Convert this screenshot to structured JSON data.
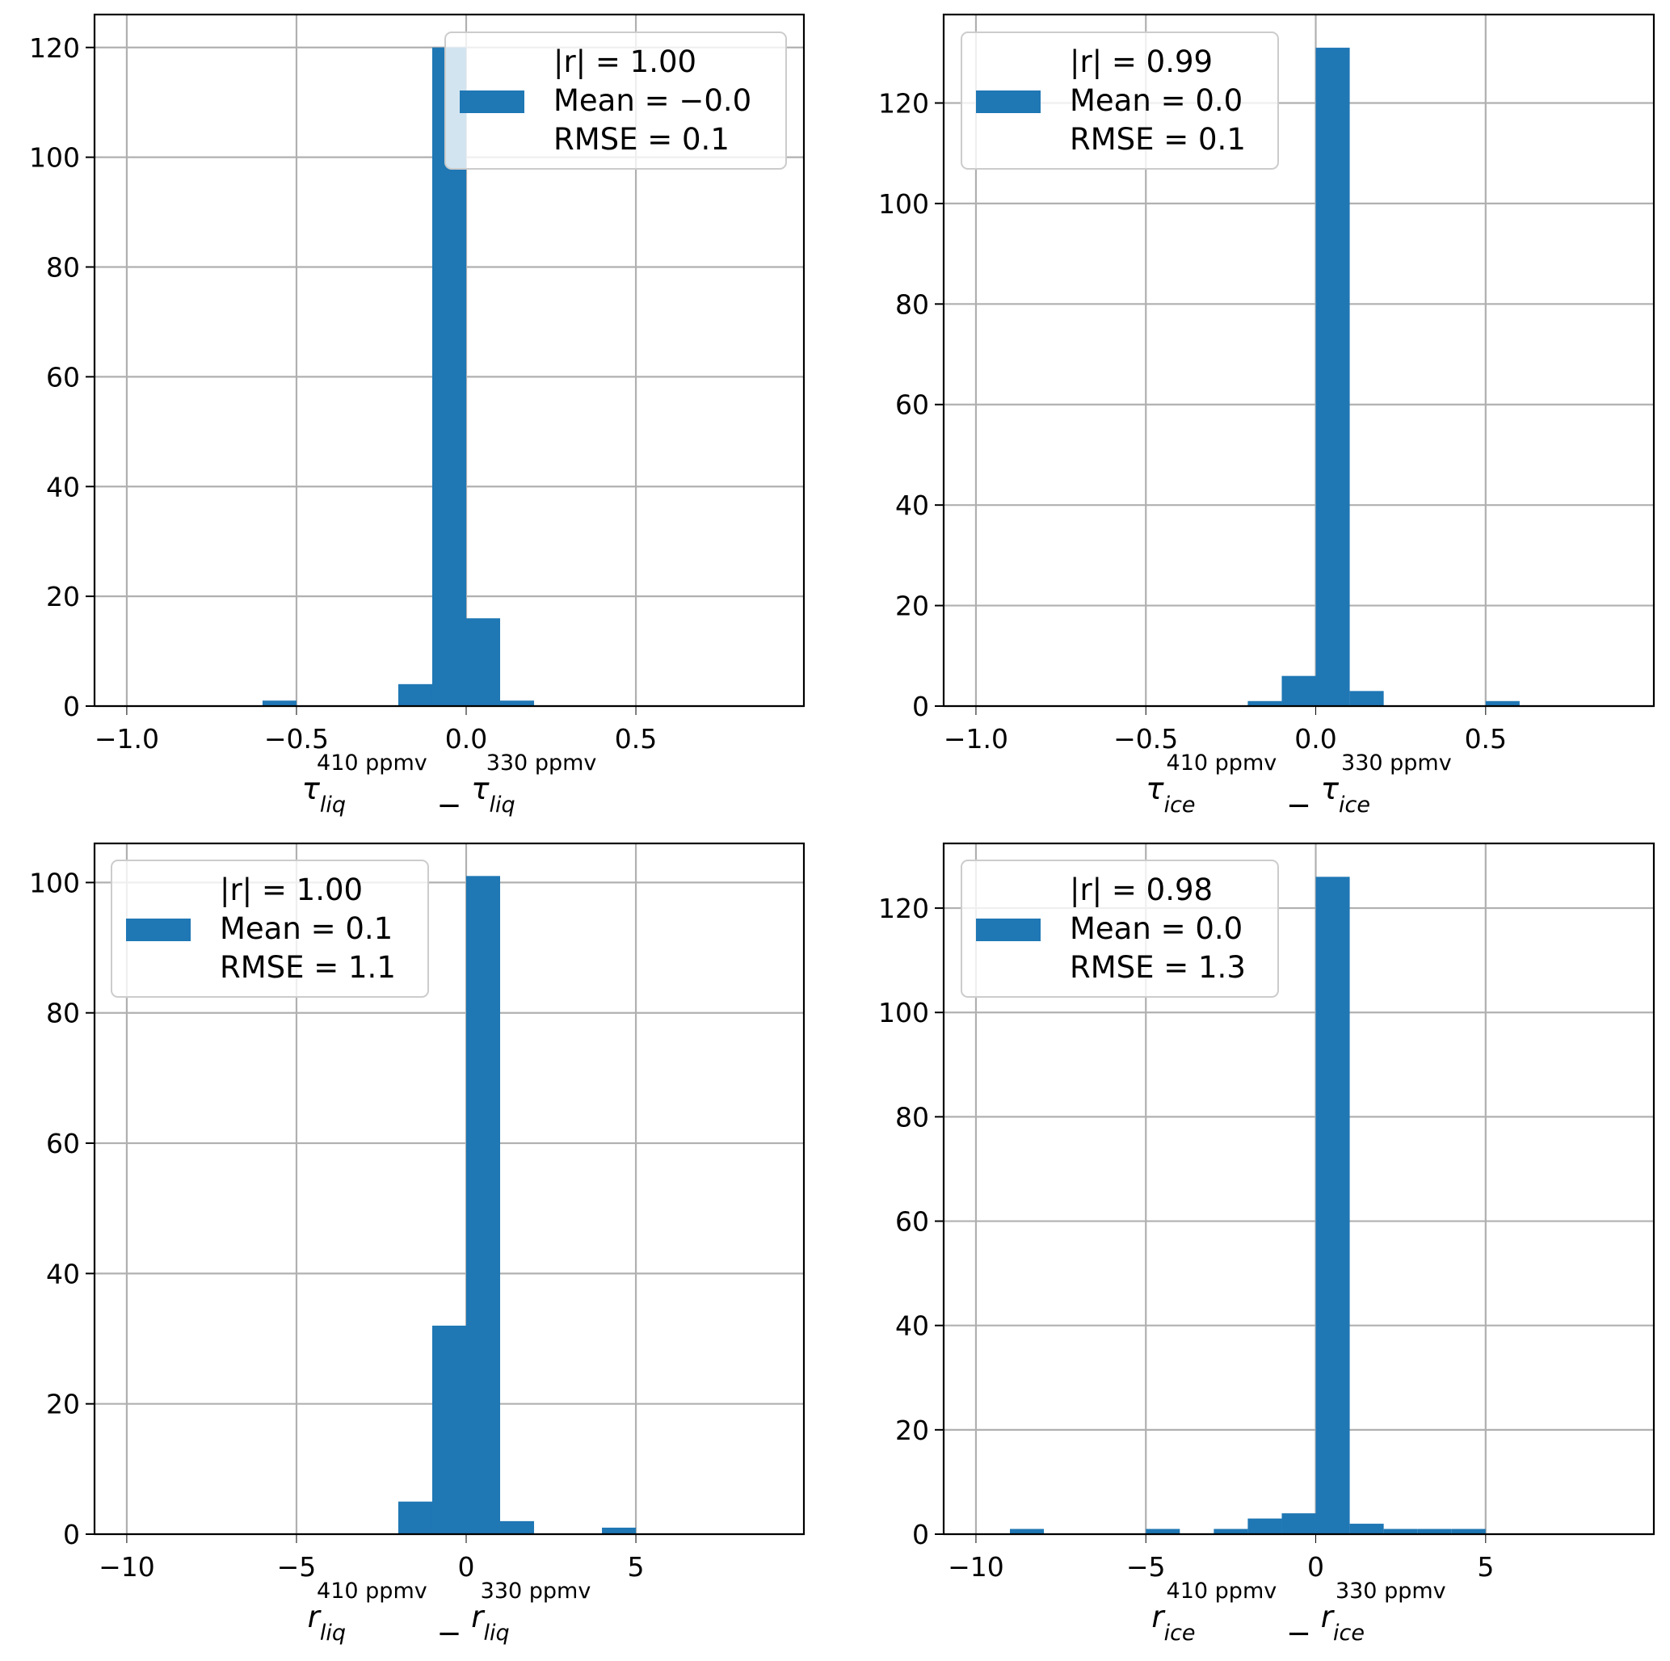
{
  "chart_data": [
    {
      "type": "bar",
      "title": "",
      "xlabel": {
        "symbol": "τ",
        "sub": "liq",
        "sup1": "410 ppmv",
        "sup2": "330 ppmv",
        "minus": "−"
      },
      "ylabel": "",
      "xlim": [
        -1.095,
        0.995
      ],
      "ylim": [
        0,
        126
      ],
      "grid": true,
      "xticks": [
        -1.0,
        -0.5,
        0.0,
        0.5
      ],
      "xtick_labels": [
        "−1.0",
        "−0.5",
        "0.0",
        "0.5"
      ],
      "yticks": [
        0,
        20,
        40,
        60,
        80,
        100,
        120
      ],
      "ytick_labels": [
        "0",
        "20",
        "40",
        "60",
        "80",
        "100",
        "120"
      ],
      "bins": [
        [
          -0.6,
          -0.5
        ],
        [
          -0.2,
          -0.1
        ],
        [
          -0.1,
          0.0
        ],
        [
          0.0,
          0.1
        ],
        [
          0.1,
          0.2
        ]
      ],
      "counts": [
        1,
        4,
        120,
        16,
        1
      ],
      "legend_placement": "upper right",
      "legend": [
        "|r| = 1.00",
        "Mean = −0.0",
        "RMSE = 0.1"
      ],
      "color": "#1f77b4"
    },
    {
      "type": "bar",
      "title": "",
      "xlabel": {
        "symbol": "τ",
        "sub": "ice",
        "sup1": "410 ppmv",
        "sup2": "330 ppmv",
        "minus": "−"
      },
      "ylabel": "",
      "xlim": [
        -1.095,
        0.995
      ],
      "ylim": [
        0,
        137.6
      ],
      "grid": true,
      "xticks": [
        -1.0,
        -0.5,
        0.0,
        0.5
      ],
      "xtick_labels": [
        "−1.0",
        "−0.5",
        "0.0",
        "0.5"
      ],
      "yticks": [
        0,
        20,
        40,
        60,
        80,
        100,
        120
      ],
      "ytick_labels": [
        "0",
        "20",
        "40",
        "60",
        "80",
        "100",
        "120"
      ],
      "bins": [
        [
          -0.2,
          -0.1
        ],
        [
          -0.1,
          0.0
        ],
        [
          0.0,
          0.1
        ],
        [
          0.1,
          0.2
        ],
        [
          0.5,
          0.6
        ]
      ],
      "counts": [
        1,
        6,
        131,
        3,
        1
      ],
      "legend_placement": "upper left",
      "legend": [
        "|r| = 0.99",
        "Mean = 0.0",
        "RMSE = 0.1"
      ],
      "color": "#1f77b4"
    },
    {
      "type": "bar",
      "title": "",
      "xlabel": {
        "symbol": "r",
        "sub": "liq",
        "sup1": "410 ppmv",
        "sup2": "330 ppmv",
        "minus": "−"
      },
      "ylabel": "",
      "xlim": [
        -10.95,
        9.95
      ],
      "ylim": [
        0,
        106
      ],
      "grid": true,
      "xticks": [
        -10,
        -5,
        0,
        5
      ],
      "xtick_labels": [
        "−10",
        "−5",
        "0",
        "5"
      ],
      "yticks": [
        0,
        20,
        40,
        60,
        80,
        100
      ],
      "ytick_labels": [
        "0",
        "20",
        "40",
        "60",
        "80",
        "100"
      ],
      "bins": [
        [
          -2,
          -1
        ],
        [
          -1,
          0
        ],
        [
          0,
          1
        ],
        [
          1,
          2
        ],
        [
          4,
          5
        ]
      ],
      "counts": [
        5,
        32,
        101,
        2,
        1
      ],
      "legend_placement": "upper left",
      "legend": [
        "|r| = 1.00",
        "Mean = 0.1",
        "RMSE = 1.1"
      ],
      "color": "#1f77b4"
    },
    {
      "type": "bar",
      "title": "",
      "xlabel": {
        "symbol": "r",
        "sub": "ice",
        "sup1": "410 ppmv",
        "sup2": "330 ppmv",
        "minus": "−"
      },
      "ylabel": "",
      "xlim": [
        -10.95,
        9.95
      ],
      "ylim": [
        0,
        132.4
      ],
      "grid": true,
      "xticks": [
        -10,
        -5,
        0,
        5
      ],
      "xtick_labels": [
        "−10",
        "−5",
        "0",
        "5"
      ],
      "yticks": [
        0,
        20,
        40,
        60,
        80,
        100,
        120
      ],
      "ytick_labels": [
        "0",
        "20",
        "40",
        "60",
        "80",
        "100",
        "120"
      ],
      "bins": [
        [
          -9,
          -8
        ],
        [
          -5,
          -4
        ],
        [
          -3,
          -2
        ],
        [
          -2,
          -1
        ],
        [
          -1,
          0
        ],
        [
          0,
          1
        ],
        [
          1,
          2
        ],
        [
          2,
          3
        ],
        [
          3,
          4
        ],
        [
          4,
          5
        ]
      ],
      "counts": [
        1,
        1,
        1,
        3,
        4,
        126,
        2,
        1,
        1,
        1
      ],
      "legend_placement": "upper left",
      "legend": [
        "|r| = 0.98",
        "Mean = 0.0",
        "RMSE = 1.3"
      ],
      "color": "#1f77b4"
    }
  ]
}
